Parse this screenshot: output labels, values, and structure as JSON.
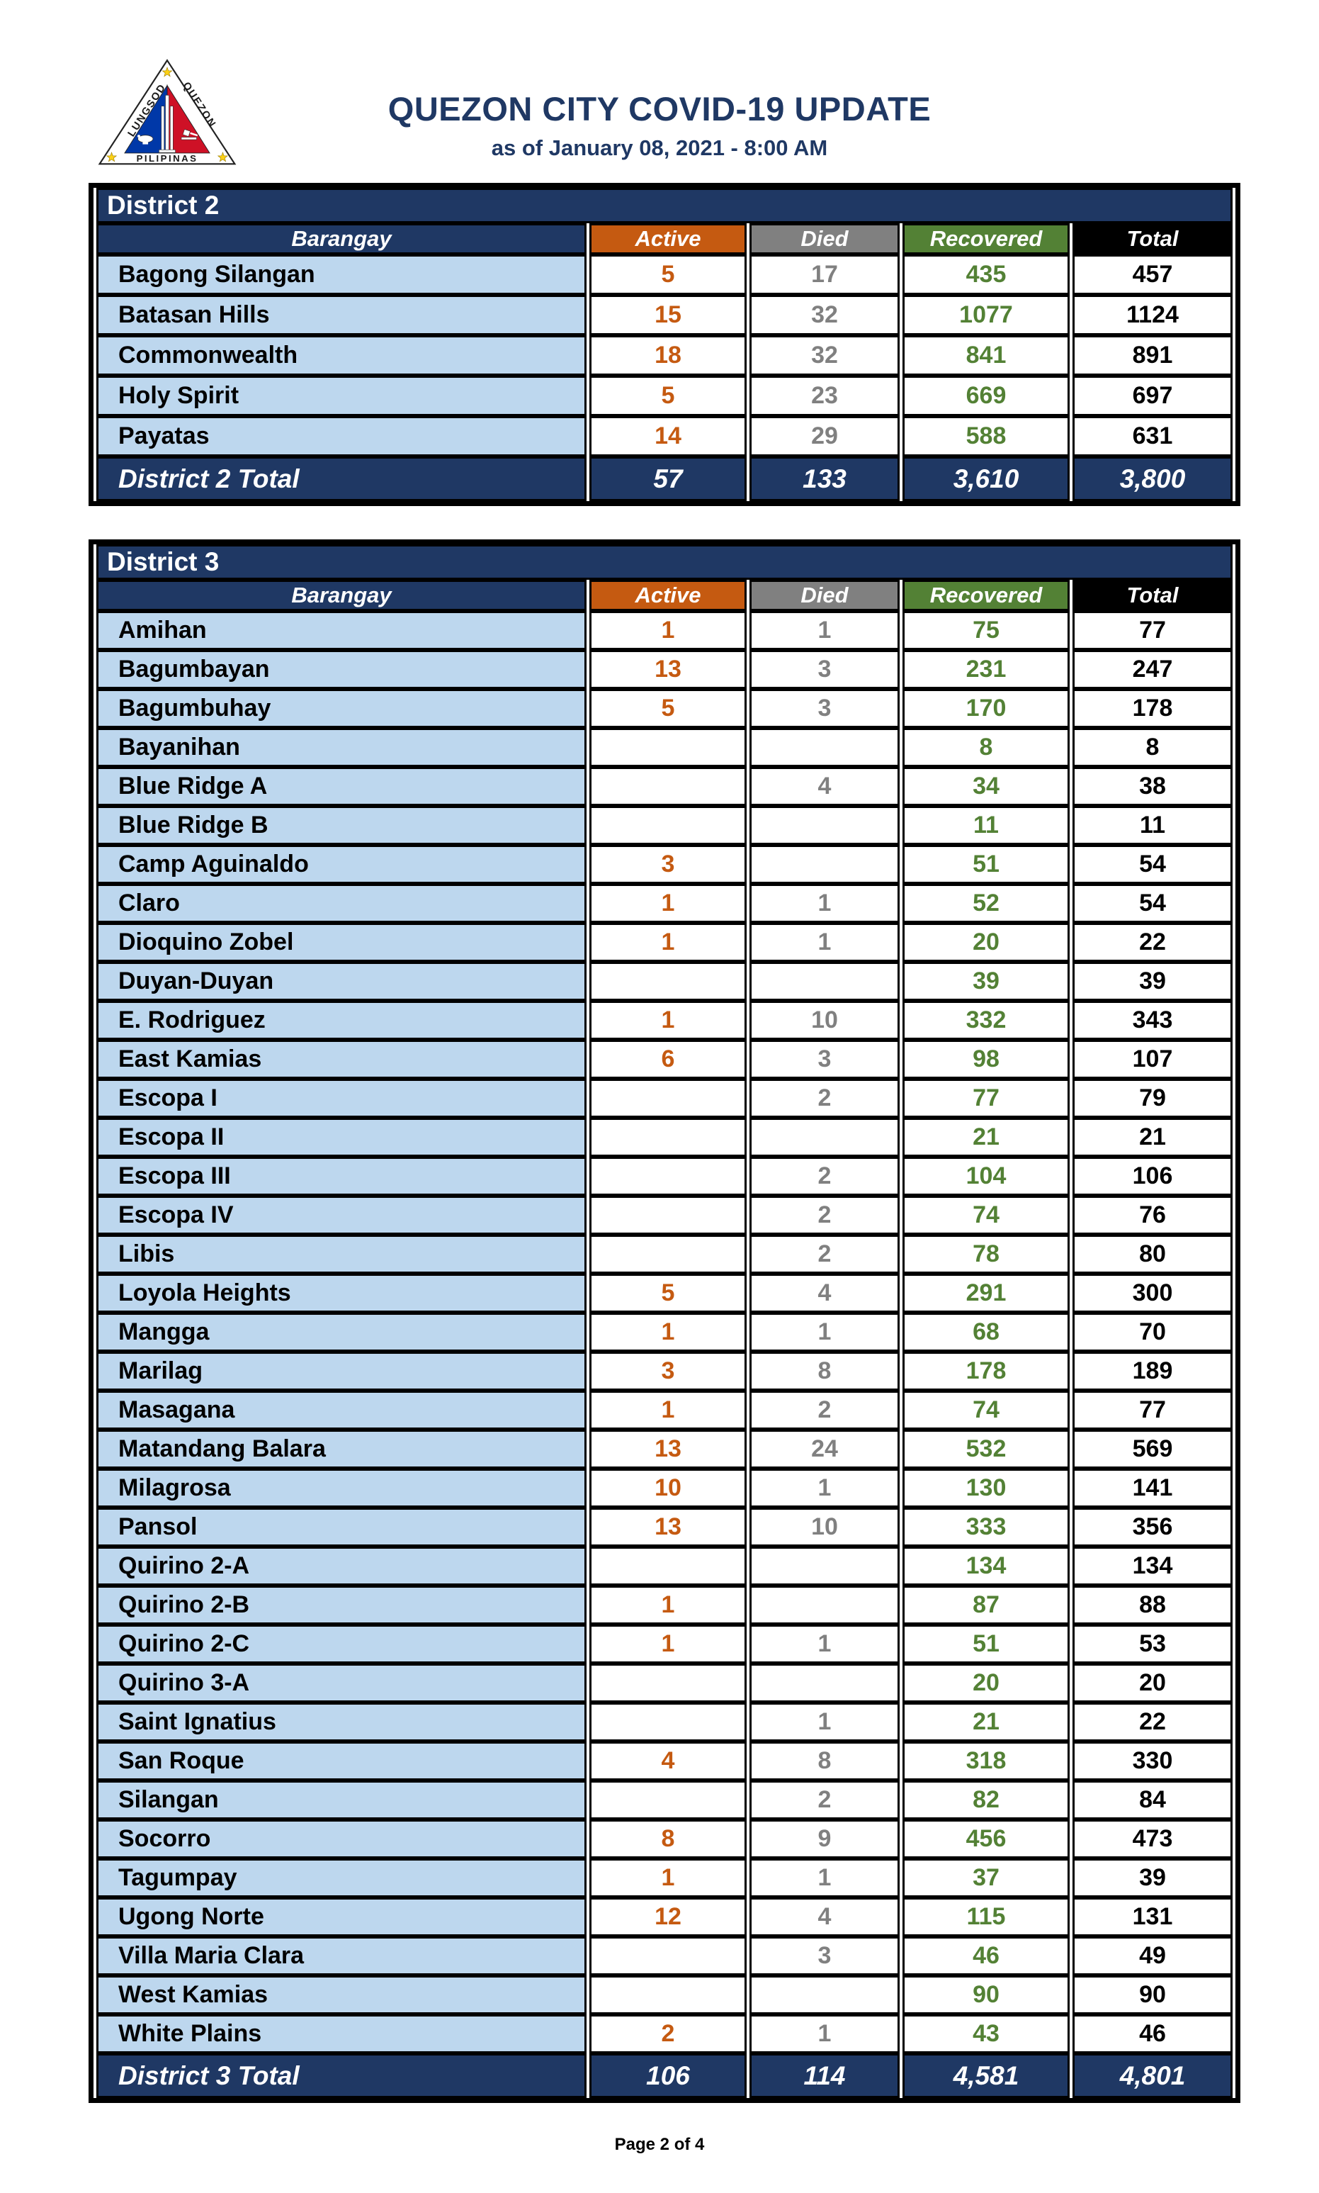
{
  "header": {
    "title": "QUEZON CITY COVID-19 UPDATE",
    "subtitle": "as of January 08, 2021 - 8:00 AM",
    "logo": {
      "left_text": "LUNGSOD",
      "right_text": "QUEZON",
      "bottom_text": "PILIPINAS"
    }
  },
  "columns": [
    "Barangay",
    "Active",
    "Died",
    "Recovered",
    "Total"
  ],
  "colors": {
    "navy": "#1F3864",
    "orange": "#C55A11",
    "gray": "#808080",
    "green": "#538135",
    "black": "#000000",
    "light_blue": "#BDD7EE",
    "logo_blue": "#0038A8",
    "logo_red": "#CE1126",
    "logo_yellow": "#FCD116"
  },
  "tables": [
    {
      "title": "District 2",
      "rows": [
        {
          "barangay": "Bagong Silangan",
          "active": "5",
          "died": "17",
          "recovered": "435",
          "total": "457"
        },
        {
          "barangay": "Batasan Hills",
          "active": "15",
          "died": "32",
          "recovered": "1077",
          "total": "1124"
        },
        {
          "barangay": "Commonwealth",
          "active": "18",
          "died": "32",
          "recovered": "841",
          "total": "891"
        },
        {
          "barangay": "Holy Spirit",
          "active": "5",
          "died": "23",
          "recovered": "669",
          "total": "697"
        },
        {
          "barangay": "Payatas",
          "active": "14",
          "died": "29",
          "recovered": "588",
          "total": "631"
        }
      ],
      "total_row": {
        "label": "District 2 Total",
        "active": "57",
        "died": "133",
        "recovered": "3,610",
        "total": "3,800"
      }
    },
    {
      "title": "District 3",
      "rows": [
        {
          "barangay": "Amihan",
          "active": "1",
          "died": "1",
          "recovered": "75",
          "total": "77"
        },
        {
          "barangay": "Bagumbayan",
          "active": "13",
          "died": "3",
          "recovered": "231",
          "total": "247"
        },
        {
          "barangay": "Bagumbuhay",
          "active": "5",
          "died": "3",
          "recovered": "170",
          "total": "178"
        },
        {
          "barangay": "Bayanihan",
          "active": "",
          "died": "",
          "recovered": "8",
          "total": "8"
        },
        {
          "barangay": "Blue Ridge A",
          "active": "",
          "died": "4",
          "recovered": "34",
          "total": "38"
        },
        {
          "barangay": "Blue Ridge B",
          "active": "",
          "died": "",
          "recovered": "11",
          "total": "11"
        },
        {
          "barangay": "Camp Aguinaldo",
          "active": "3",
          "died": "",
          "recovered": "51",
          "total": "54"
        },
        {
          "barangay": "Claro",
          "active": "1",
          "died": "1",
          "recovered": "52",
          "total": "54"
        },
        {
          "barangay": "Dioquino Zobel",
          "active": "1",
          "died": "1",
          "recovered": "20",
          "total": "22"
        },
        {
          "barangay": "Duyan-Duyan",
          "active": "",
          "died": "",
          "recovered": "39",
          "total": "39"
        },
        {
          "barangay": "E. Rodriguez",
          "active": "1",
          "died": "10",
          "recovered": "332",
          "total": "343"
        },
        {
          "barangay": "East Kamias",
          "active": "6",
          "died": "3",
          "recovered": "98",
          "total": "107"
        },
        {
          "barangay": "Escopa I",
          "active": "",
          "died": "2",
          "recovered": "77",
          "total": "79"
        },
        {
          "barangay": "Escopa II",
          "active": "",
          "died": "",
          "recovered": "21",
          "total": "21"
        },
        {
          "barangay": "Escopa III",
          "active": "",
          "died": "2",
          "recovered": "104",
          "total": "106"
        },
        {
          "barangay": "Escopa IV",
          "active": "",
          "died": "2",
          "recovered": "74",
          "total": "76"
        },
        {
          "barangay": "Libis",
          "active": "",
          "died": "2",
          "recovered": "78",
          "total": "80"
        },
        {
          "barangay": "Loyola Heights",
          "active": "5",
          "died": "4",
          "recovered": "291",
          "total": "300"
        },
        {
          "barangay": "Mangga",
          "active": "1",
          "died": "1",
          "recovered": "68",
          "total": "70"
        },
        {
          "barangay": "Marilag",
          "active": "3",
          "died": "8",
          "recovered": "178",
          "total": "189"
        },
        {
          "barangay": "Masagana",
          "active": "1",
          "died": "2",
          "recovered": "74",
          "total": "77"
        },
        {
          "barangay": "Matandang Balara",
          "active": "13",
          "died": "24",
          "recovered": "532",
          "total": "569"
        },
        {
          "barangay": "Milagrosa",
          "active": "10",
          "died": "1",
          "recovered": "130",
          "total": "141"
        },
        {
          "barangay": "Pansol",
          "active": "13",
          "died": "10",
          "recovered": "333",
          "total": "356"
        },
        {
          "barangay": "Quirino 2-A",
          "active": "",
          "died": "",
          "recovered": "134",
          "total": "134"
        },
        {
          "barangay": "Quirino 2-B",
          "active": "1",
          "died": "",
          "recovered": "87",
          "total": "88"
        },
        {
          "barangay": "Quirino 2-C",
          "active": "1",
          "died": "1",
          "recovered": "51",
          "total": "53"
        },
        {
          "barangay": "Quirino 3-A",
          "active": "",
          "died": "",
          "recovered": "20",
          "total": "20"
        },
        {
          "barangay": "Saint Ignatius",
          "active": "",
          "died": "1",
          "recovered": "21",
          "total": "22"
        },
        {
          "barangay": "San Roque",
          "active": "4",
          "died": "8",
          "recovered": "318",
          "total": "330"
        },
        {
          "barangay": "Silangan",
          "active": "",
          "died": "2",
          "recovered": "82",
          "total": "84"
        },
        {
          "barangay": "Socorro",
          "active": "8",
          "died": "9",
          "recovered": "456",
          "total": "473"
        },
        {
          "barangay": "Tagumpay",
          "active": "1",
          "died": "1",
          "recovered": "37",
          "total": "39"
        },
        {
          "barangay": "Ugong Norte",
          "active": "12",
          "died": "4",
          "recovered": "115",
          "total": "131"
        },
        {
          "barangay": "Villa Maria Clara",
          "active": "",
          "died": "3",
          "recovered": "46",
          "total": "49"
        },
        {
          "barangay": "West Kamias",
          "active": "",
          "died": "",
          "recovered": "90",
          "total": "90"
        },
        {
          "barangay": "White Plains",
          "active": "2",
          "died": "1",
          "recovered": "43",
          "total": "46"
        }
      ],
      "total_row": {
        "label": "District 3 Total",
        "active": "106",
        "died": "114",
        "recovered": "4,581",
        "total": "4,801"
      }
    }
  ],
  "footer": {
    "page_text": "Page 2 of 4"
  }
}
